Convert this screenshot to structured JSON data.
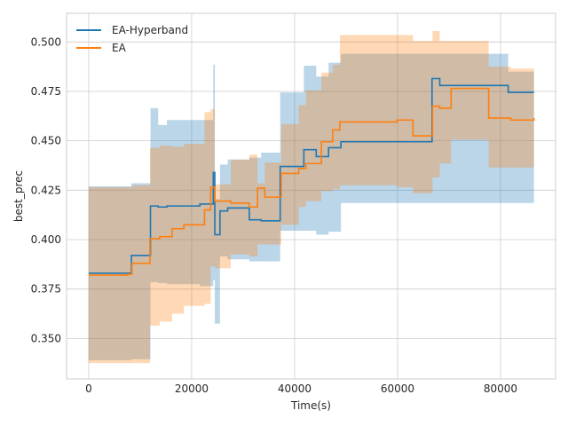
{
  "chart_data": {
    "type": "line",
    "title": "",
    "xlabel": "Time(s)",
    "ylabel": "best_prec",
    "xlim": [
      -4300,
      90700
    ],
    "ylim": [
      0.3295,
      0.5145
    ],
    "xticks": [
      0,
      20000,
      40000,
      60000,
      80000
    ],
    "yticks": [
      0.35,
      0.375,
      0.4,
      0.425,
      0.45,
      0.475,
      0.5
    ],
    "xtick_labels": [
      "0",
      "20000",
      "40000",
      "60000",
      "80000"
    ],
    "ytick_labels": [
      "0.350",
      "0.375",
      "0.400",
      "0.425",
      "0.450",
      "0.475",
      "0.500"
    ],
    "grid": true,
    "legend_position": "top-left",
    "series": [
      {
        "name": "EA-Hyperband",
        "color": "#1f77b4",
        "band_opacity": 0.3,
        "x": [
          0,
          8300,
          12000,
          13500,
          15200,
          21600,
          24200,
          24500,
          25500,
          27000,
          31200,
          33500,
          37200,
          41800,
          44200,
          46600,
          49000,
          66700,
          68200,
          81500,
          86500
        ],
        "y": [
          0.383,
          0.392,
          0.417,
          0.4165,
          0.417,
          0.418,
          0.434,
          0.4025,
          0.4145,
          0.416,
          0.41,
          0.4095,
          0.437,
          0.4455,
          0.442,
          0.4465,
          0.4495,
          0.4815,
          0.478,
          0.4745,
          0.4745
        ],
        "upper": [
          0.427,
          0.4285,
          0.4665,
          0.458,
          0.4605,
          0.4605,
          0.4885,
          0.4205,
          0.438,
          0.4405,
          0.4415,
          0.444,
          0.4745,
          0.488,
          0.4825,
          0.4895,
          0.494,
          0.494,
          0.494,
          0.485,
          0.485
        ],
        "lower": [
          0.339,
          0.3395,
          0.3785,
          0.378,
          0.3775,
          0.3765,
          0.3795,
          0.3575,
          0.3915,
          0.39,
          0.389,
          0.389,
          0.4045,
          0.4045,
          0.4025,
          0.404,
          0.4185,
          0.4185,
          0.4185,
          0.4185,
          0.4185
        ]
      },
      {
        "name": "EA",
        "color": "#ff7f0e",
        "band_opacity": 0.3,
        "x": [
          0,
          7600,
          8400,
          11900,
          13800,
          16200,
          18500,
          22500,
          23700,
          24500,
          27600,
          31200,
          32800,
          34200,
          37400,
          40800,
          42200,
          45200,
          47400,
          48800,
          59900,
          63000,
          66800,
          68200,
          70400,
          77700,
          82000,
          86500
        ],
        "y": [
          0.382,
          0.3825,
          0.388,
          0.4005,
          0.4015,
          0.4055,
          0.4075,
          0.415,
          0.4265,
          0.4195,
          0.4185,
          0.4165,
          0.426,
          0.4215,
          0.4335,
          0.436,
          0.4385,
          0.4495,
          0.4555,
          0.4595,
          0.4605,
          0.4525,
          0.4675,
          0.4665,
          0.4765,
          0.4615,
          0.4605,
          0.4615
        ],
        "upper": [
          0.4265,
          0.4265,
          0.4275,
          0.4465,
          0.4475,
          0.447,
          0.4485,
          0.4645,
          0.466,
          0.428,
          0.4405,
          0.443,
          0.4285,
          0.439,
          0.4585,
          0.468,
          0.4755,
          0.4845,
          0.4885,
          0.5035,
          0.5035,
          0.5005,
          0.5055,
          0.5005,
          0.5005,
          0.4875,
          0.4865,
          0.4865
        ],
        "lower": [
          0.3375,
          0.3375,
          0.3375,
          0.3565,
          0.3585,
          0.3625,
          0.3665,
          0.3675,
          0.3865,
          0.3855,
          0.3925,
          0.3915,
          0.3975,
          0.3975,
          0.4075,
          0.4165,
          0.4195,
          0.4245,
          0.4255,
          0.4275,
          0.4265,
          0.4235,
          0.4315,
          0.4385,
          0.4505,
          0.4365,
          0.4365,
          0.4365
        ]
      }
    ]
  }
}
